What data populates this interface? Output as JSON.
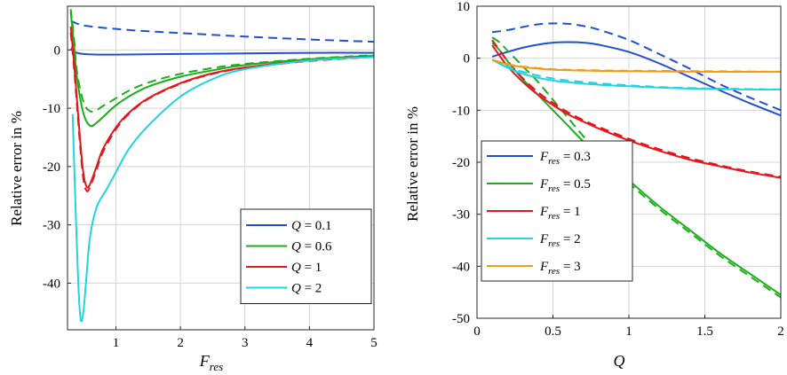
{
  "chart_data": [
    {
      "type": "line",
      "xlabel": "F",
      "xlabel_sub": "res",
      "ylabel": "Relative error in %",
      "xlim": [
        0.25,
        5
      ],
      "ylim": [
        -48,
        7.5
      ],
      "xticks": [
        1,
        2,
        3,
        4,
        5
      ],
      "xtick_labels": [
        "1",
        "2",
        "3",
        "4",
        "5"
      ],
      "yticks": [
        0,
        -10,
        -20,
        -30,
        -40
      ],
      "ytick_labels": [
        "0",
        "-10",
        "-20",
        "-30",
        "-40"
      ],
      "grid": true,
      "legend_position": "bottom-right",
      "legend": [
        {
          "var": "Q",
          "text": " = 0.1",
          "color": "#1f4fd6"
        },
        {
          "var": "Q",
          "text": " = 0.6",
          "color": "#1aaf1a"
        },
        {
          "var": "Q",
          "text": " = 1",
          "color": "#e8141b"
        },
        {
          "var": "Q",
          "text": " = 2",
          "color": "#22d3e0"
        }
      ],
      "series": [
        {
          "name": "Q = 0.1",
          "style": "solid",
          "color": "#1f4fd6",
          "x": [
            0.3,
            0.35,
            0.4,
            0.5,
            0.75,
            1,
            2,
            3,
            4,
            5
          ],
          "y": [
            0.2,
            -0.3,
            -0.5,
            -0.7,
            -0.8,
            -0.8,
            -0.7,
            -0.6,
            -0.5,
            -0.5
          ]
        },
        {
          "name": "Q = 0.1",
          "style": "dashed",
          "color": "#1f4fd6",
          "x": [
            0.3,
            0.5,
            1,
            1.5,
            2,
            3,
            4,
            5
          ],
          "y": [
            5.0,
            4.2,
            3.6,
            3.2,
            2.9,
            2.3,
            1.8,
            1.4
          ]
        },
        {
          "name": "Q = 0.6",
          "style": "solid",
          "color": "#1aaf1a",
          "x": [
            0.3,
            0.35,
            0.4,
            0.5,
            0.6,
            0.7,
            0.8,
            1,
            1.2,
            1.5,
            2,
            2.5,
            3,
            4,
            5
          ],
          "y": [
            6.5,
            1,
            -5,
            -11,
            -13,
            -12.5,
            -11.5,
            -9.5,
            -8,
            -6.3,
            -4.6,
            -3.5,
            -2.6,
            -1.6,
            -1
          ]
        },
        {
          "name": "Q = 0.6",
          "style": "dashed",
          "color": "#1aaf1a",
          "x": [
            0.3,
            0.35,
            0.4,
            0.5,
            0.6,
            0.7,
            0.8,
            1,
            1.2,
            1.5,
            2,
            2.5,
            3,
            4,
            5
          ],
          "y": [
            7,
            2,
            -4,
            -9,
            -10.5,
            -10.3,
            -9.6,
            -8.3,
            -7,
            -5.6,
            -4.1,
            -3.1,
            -2.4,
            -1.5,
            -0.9
          ]
        },
        {
          "name": "Q = 1",
          "style": "solid",
          "color": "#e8141b",
          "x": [
            0.3,
            0.35,
            0.4,
            0.45,
            0.5,
            0.55,
            0.6,
            0.7,
            0.8,
            1,
            1.2,
            1.5,
            2,
            2.5,
            3,
            4,
            5
          ],
          "y": [
            4,
            -2,
            -9,
            -16,
            -21.5,
            -23.5,
            -23,
            -20,
            -17,
            -13.3,
            -10.8,
            -8.3,
            -5.7,
            -4,
            -3,
            -1.8,
            -1.1
          ]
        },
        {
          "name": "Q = 1",
          "style": "dashed",
          "color": "#e8141b",
          "x": [
            0.3,
            0.35,
            0.4,
            0.45,
            0.5,
            0.55,
            0.6,
            0.7,
            0.8,
            1,
            1.2,
            1.5,
            2,
            2.5,
            3,
            4,
            5
          ],
          "y": [
            3,
            -3,
            -10,
            -17,
            -22.5,
            -24.2,
            -23.5,
            -20.5,
            -17.5,
            -13.6,
            -11,
            -8.4,
            -5.8,
            -4.1,
            -3.1,
            -1.9,
            -1.2
          ]
        },
        {
          "name": "Q = 2",
          "style": "solid",
          "color": "#22d3e0",
          "x": [
            0.33,
            0.36,
            0.4,
            0.43,
            0.46,
            0.5,
            0.55,
            0.6,
            0.7,
            0.85,
            1,
            1.2,
            1.5,
            2,
            2.5,
            3,
            4,
            5
          ],
          "y": [
            -11,
            -22,
            -35,
            -43,
            -46.5,
            -44.5,
            -38,
            -32,
            -27,
            -24,
            -21,
            -17,
            -13,
            -8,
            -5,
            -3.3,
            -1.8,
            -1.2
          ]
        }
      ]
    },
    {
      "type": "line",
      "xlabel": "Q",
      "ylabel": "Relative error in %",
      "xlim": [
        0,
        2
      ],
      "ylim": [
        -50,
        10
      ],
      "xticks": [
        0,
        0.5,
        1,
        1.5,
        2
      ],
      "xtick_labels": [
        "0",
        "0.5",
        "1",
        "1.5",
        "2"
      ],
      "yticks": [
        10,
        0,
        -10,
        -20,
        -30,
        -40,
        -50
      ],
      "ytick_labels": [
        "10",
        "0",
        "-10",
        "-20",
        "-30",
        "-40",
        "-50"
      ],
      "grid": true,
      "legend_position": "bottom-left",
      "legend": [
        {
          "var": "F",
          "sub": "res",
          "text": " = 0.3",
          "color": "#1f4fd6"
        },
        {
          "var": "F",
          "sub": "res",
          "text": " = 0.5",
          "color": "#1aaf1a"
        },
        {
          "var": "F",
          "sub": "res",
          "text": " = 1",
          "color": "#e8141b"
        },
        {
          "var": "F",
          "sub": "res",
          "text": " = 2",
          "color": "#22d3e0"
        },
        {
          "var": "F",
          "sub": "res",
          "text": " = 3",
          "color": "#f59a16"
        }
      ],
      "series": [
        {
          "name": "Fres = 0.3",
          "style": "solid",
          "color": "#1f4fd6",
          "x": [
            0.1,
            0.2,
            0.3,
            0.4,
            0.5,
            0.6,
            0.7,
            0.8,
            1.0,
            1.2,
            1.4,
            1.6,
            1.8,
            2.0
          ],
          "y": [
            0.3,
            1.2,
            2.0,
            2.6,
            3.0,
            3.1,
            3.0,
            2.6,
            1.2,
            -1.0,
            -3.6,
            -6.2,
            -8.7,
            -11.0
          ]
        },
        {
          "name": "Fres = 0.3",
          "style": "dashed",
          "color": "#1f4fd6",
          "x": [
            0.1,
            0.2,
            0.3,
            0.4,
            0.5,
            0.6,
            0.7,
            0.8,
            1.0,
            1.2,
            1.4,
            1.6,
            1.8,
            2.0
          ],
          "y": [
            5.0,
            5.4,
            6.0,
            6.5,
            6.7,
            6.6,
            6.2,
            5.5,
            3.5,
            0.8,
            -2.0,
            -5.0,
            -7.6,
            -10.0
          ]
        },
        {
          "name": "Fres = 0.5",
          "style": "solid",
          "color": "#1aaf1a",
          "x": [
            0.1,
            0.15,
            0.2,
            0.3,
            0.4,
            0.5,
            0.6,
            0.7,
            0.8,
            1.0,
            1.2,
            1.4,
            1.6,
            1.8,
            2.0
          ],
          "y": [
            3.0,
            1.5,
            -0.5,
            -4.0,
            -7.0,
            -10.0,
            -13.0,
            -16.0,
            -18.5,
            -23.5,
            -28.5,
            -33.0,
            -37.5,
            -41.5,
            -45.5
          ]
        },
        {
          "name": "Fres = 0.5",
          "style": "dashed",
          "color": "#1aaf1a",
          "x": [
            0.1,
            0.15,
            0.2,
            0.3,
            0.4,
            0.5,
            0.6,
            0.7,
            0.8,
            1.0,
            1.2,
            1.4,
            1.6,
            1.8,
            2.0
          ],
          "y": [
            4.0,
            3.0,
            1.5,
            -1.5,
            -4.5,
            -8.0,
            -11.5,
            -15.0,
            -18.5,
            -24.0,
            -29.0,
            -33.5,
            -38.0,
            -42.0,
            -46.0
          ]
        },
        {
          "name": "Fres = 1",
          "style": "solid",
          "color": "#e8141b",
          "x": [
            0.1,
            0.2,
            0.3,
            0.4,
            0.5,
            0.6,
            0.7,
            0.8,
            1.0,
            1.2,
            1.4,
            1.6,
            1.8,
            2.0
          ],
          "y": [
            2.5,
            -1.5,
            -4.5,
            -7.0,
            -9.0,
            -10.8,
            -12.2,
            -13.5,
            -15.8,
            -17.8,
            -19.5,
            -20.8,
            -22.0,
            -23.0
          ]
        },
        {
          "name": "Fres = 1",
          "style": "dashed",
          "color": "#e8141b",
          "x": [
            0.1,
            0.2,
            0.3,
            0.4,
            0.5,
            0.6,
            0.7,
            0.8,
            1.0,
            1.2,
            1.4,
            1.6,
            1.8,
            2.0
          ],
          "y": [
            3.5,
            -0.5,
            -3.8,
            -6.5,
            -8.6,
            -10.4,
            -11.9,
            -13.2,
            -15.5,
            -17.5,
            -19.2,
            -20.6,
            -21.8,
            -22.8
          ]
        },
        {
          "name": "Fres = 2",
          "style": "solid",
          "color": "#22d3e0",
          "x": [
            0.1,
            0.2,
            0.3,
            0.5,
            0.75,
            1.0,
            1.25,
            1.5,
            1.75,
            2.0
          ],
          "y": [
            -0.3,
            -1.8,
            -3.0,
            -4.3,
            -5.0,
            -5.4,
            -5.7,
            -5.9,
            -6.0,
            -6.0
          ]
        },
        {
          "name": "Fres = 2",
          "style": "dashed",
          "color": "#22d3e0",
          "x": [
            0.1,
            0.2,
            0.3,
            0.5,
            0.75,
            1.0,
            1.25,
            1.5,
            1.75,
            2.0
          ],
          "y": [
            -0.3,
            -1.5,
            -2.6,
            -3.9,
            -4.7,
            -5.2,
            -5.6,
            -5.8,
            -5.9,
            -6.0
          ]
        },
        {
          "name": "Fres = 3",
          "style": "solid",
          "color": "#f59a16",
          "x": [
            0.1,
            0.2,
            0.3,
            0.5,
            0.75,
            1.0,
            1.5,
            2.0
          ],
          "y": [
            -0.3,
            -1.2,
            -1.7,
            -2.2,
            -2.4,
            -2.5,
            -2.6,
            -2.6
          ]
        },
        {
          "name": "Fres = 3",
          "style": "dashed",
          "color": "#f59a16",
          "x": [
            0.1,
            0.2,
            0.3,
            0.5,
            0.75,
            1.0,
            1.5,
            2.0
          ],
          "y": [
            -0.3,
            -1.1,
            -1.6,
            -2.1,
            -2.3,
            -2.4,
            -2.5,
            -2.6
          ]
        }
      ]
    }
  ]
}
